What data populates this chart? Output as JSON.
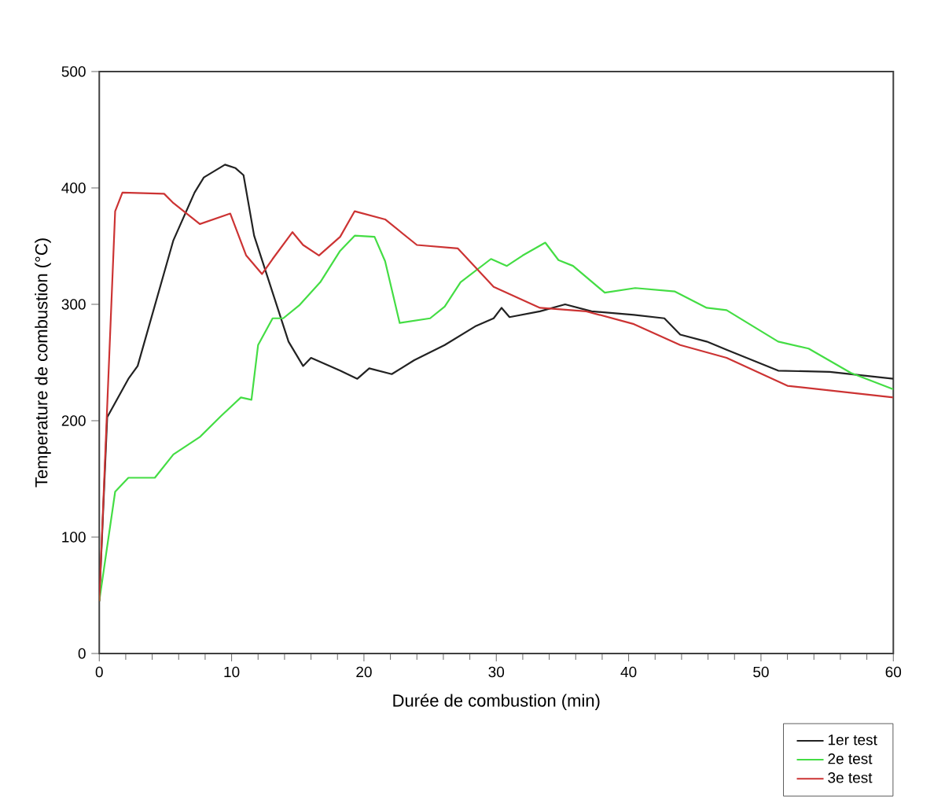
{
  "chart_data": {
    "type": "line",
    "xlabel": "Durée de combustion (min)",
    "ylabel": "Temperature de combustion (°C)",
    "xlim": [
      0,
      60
    ],
    "ylim": [
      0,
      500
    ],
    "xticks": [
      0,
      10,
      20,
      30,
      40,
      50,
      60
    ],
    "yticks": [
      0,
      100,
      200,
      300,
      400,
      500
    ],
    "grid": false,
    "legend": "bottom right",
    "marker": "none",
    "line_style": "solid",
    "series": [
      {
        "name": "1er test",
        "color": "#222222",
        "x": [
          0,
          0.6,
          2.2,
          2.9,
          5.6,
          7.2,
          7.9,
          9.5,
          10.3,
          10.9,
          11.7,
          13.1,
          14.3,
          15.4,
          16,
          18.2,
          19.5,
          20.4,
          22.1,
          23.8,
          26.1,
          28.4,
          29.8,
          30.4,
          31,
          33.3,
          35.2,
          37.2,
          40.4,
          42.7,
          43.9,
          45.9,
          47.4,
          51.3,
          55.2,
          60
        ],
        "values": [
          45,
          203,
          236,
          247,
          355,
          396,
          409,
          420,
          417,
          411,
          359,
          310,
          268,
          247,
          254,
          243,
          236,
          245,
          240,
          252,
          265,
          281,
          288,
          297,
          289,
          294,
          300,
          294,
          291,
          288,
          274,
          268,
          261,
          243,
          242,
          236
        ]
      },
      {
        "name": "2e test",
        "color": "#44dd44",
        "x": [
          0,
          1.2,
          2.2,
          4.2,
          5.6,
          7.6,
          9.2,
          10.7,
          11.5,
          12,
          13.1,
          13.9,
          15.1,
          16.7,
          18.2,
          19.3,
          20.8,
          21.6,
          22.7,
          25,
          26.1,
          27.3,
          29.6,
          30.8,
          32,
          33.7,
          34.7,
          35.8,
          38.2,
          40.5,
          43.5,
          45.9,
          47.4,
          51.3,
          53.6,
          56.8,
          60
        ],
        "values": [
          45,
          139,
          151,
          151,
          171,
          186,
          204,
          220,
          218,
          265,
          288,
          288,
          299,
          319,
          346,
          359,
          358,
          337,
          284,
          288,
          298,
          319,
          339,
          333,
          342,
          353,
          338,
          333,
          310,
          314,
          311,
          297,
          295,
          268,
          262,
          241,
          227
        ]
      },
      {
        "name": "3e test",
        "color": "#cc3333",
        "x": [
          0,
          1.2,
          1.75,
          4.9,
          5.6,
          7.6,
          9.9,
          11.1,
          12.3,
          13.1,
          14.6,
          15.4,
          16.6,
          18.2,
          19.3,
          21.6,
          24,
          27.1,
          29.8,
          33.3,
          36.8,
          40.4,
          43.9,
          47.4,
          52,
          60
        ],
        "values": [
          45,
          380,
          396,
          395,
          387,
          369,
          378,
          342,
          326,
          339,
          362,
          351,
          342,
          358,
          380,
          373,
          351,
          348,
          315,
          297,
          294,
          283,
          265,
          254,
          230,
          220
        ]
      }
    ]
  }
}
